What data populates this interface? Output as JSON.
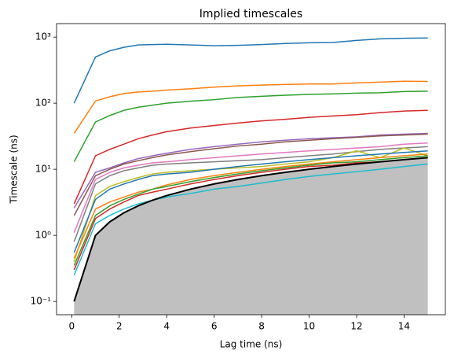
{
  "chart_data": {
    "type": "line",
    "title": "Implied timescales",
    "x_label": "Lag time (ns)",
    "y_label": "Timescale (ns)",
    "log_y": true,
    "x": [
      0.1,
      1,
      1.6,
      2.2,
      2.8,
      3.4,
      4,
      5,
      6,
      7,
      8,
      9,
      10,
      11,
      12,
      13,
      14,
      15
    ],
    "xlim": [
      -0.64,
      15.74
    ],
    "xticks": [
      0,
      2,
      4,
      6,
      8,
      10,
      12,
      14
    ],
    "ylim": [
      0.063,
      1600
    ],
    "yticks": [
      {
        "value": 0.1,
        "label": "10⁻¹"
      },
      {
        "value": 1,
        "label": "10⁰"
      },
      {
        "value": 10,
        "label": "10¹"
      },
      {
        "value": 100,
        "label": "10²"
      },
      {
        "value": 1000,
        "label": "10³"
      }
    ],
    "series": [
      {
        "color": "#1f77b4",
        "values": [
          100,
          500,
          620,
          700,
          760,
          770,
          780,
          760,
          740,
          750,
          770,
          800,
          820,
          830,
          890,
          940,
          960,
          970
        ]
      },
      {
        "color": "#ff7f0e",
        "values": [
          35,
          108,
          125,
          140,
          148,
          152,
          158,
          165,
          175,
          183,
          188,
          192,
          195,
          195,
          203,
          208,
          215,
          213
        ]
      },
      {
        "color": "#2ca02c",
        "values": [
          13,
          52,
          65,
          78,
          87,
          93,
          100,
          107,
          113,
          122,
          127,
          132,
          136,
          138,
          142,
          144,
          150,
          152
        ]
      },
      {
        "color": "#d62728",
        "values": [
          3,
          16,
          20,
          24,
          29,
          33,
          37,
          42,
          46,
          50,
          54,
          57,
          61,
          64,
          67,
          72,
          76,
          78
        ]
      },
      {
        "color": "#9467bd",
        "values": [
          2.6,
          9,
          10.5,
          12.5,
          14.5,
          16,
          17.5,
          20,
          22,
          24,
          26,
          27.5,
          29,
          30,
          31,
          33,
          34,
          35
        ]
      },
      {
        "color": "#8c564b",
        "values": [
          2,
          8,
          10,
          12,
          13.5,
          15,
          16.5,
          18.5,
          20.5,
          22.5,
          24,
          26,
          27.5,
          29,
          30.5,
          32,
          33,
          34
        ]
      },
      {
        "color": "#e377c2",
        "values": [
          1.1,
          7,
          9,
          10.5,
          11.5,
          12.5,
          13,
          14,
          15,
          16,
          17,
          18,
          19,
          20,
          21,
          22,
          24,
          25
        ]
      },
      {
        "color": "#7f7f7f",
        "values": [
          0.8,
          6,
          8,
          9.5,
          10.5,
          11.5,
          12,
          12.5,
          13,
          13.5,
          14,
          15,
          16,
          17,
          18.5,
          20,
          21,
          22
        ]
      },
      {
        "color": "#bcbd22",
        "values": [
          0.4,
          4,
          5.5,
          6.5,
          7.5,
          8.5,
          9,
          9.5,
          10,
          10.5,
          11,
          12,
          13,
          15,
          19,
          15,
          21,
          16
        ]
      },
      {
        "color": "#17becf",
        "values": [
          0.25,
          1.5,
          2,
          2.5,
          3,
          3.4,
          3.8,
          4.3,
          5,
          5.5,
          6.2,
          7,
          7.8,
          8.5,
          9.2,
          10,
          11,
          12
        ]
      },
      {
        "color": "#1f77b4",
        "values": [
          0.55,
          3.5,
          5,
          6,
          7,
          8,
          8.5,
          9,
          10,
          11,
          12,
          13,
          14,
          15,
          16,
          17,
          18,
          19
        ]
      },
      {
        "color": "#ff7f0e",
        "values": [
          0.45,
          2.5,
          3.2,
          3.8,
          4.5,
          5,
          5.8,
          7,
          8,
          9,
          10,
          11,
          12,
          13,
          14,
          15,
          16,
          17
        ]
      },
      {
        "color": "#2ca02c",
        "values": [
          0.35,
          2,
          2.8,
          3.5,
          4.2,
          5,
          5.5,
          6.5,
          7.5,
          8.5,
          9.5,
          10.5,
          11.5,
          12.5,
          13,
          14,
          15,
          16
        ]
      },
      {
        "color": "#d62728",
        "values": [
          0.3,
          1.8,
          2.5,
          3.2,
          4,
          4.5,
          5,
          6,
          7,
          8,
          9,
          10,
          11,
          11.5,
          12.5,
          13,
          14,
          15
        ]
      },
      {
        "color": "#000000",
        "width": 2,
        "fill": "#c0c0c0",
        "values": [
          0.1,
          1,
          1.6,
          2.2,
          2.8,
          3.4,
          4,
          5,
          6,
          7,
          8,
          9,
          10,
          11,
          12,
          13,
          14,
          15
        ]
      }
    ]
  }
}
